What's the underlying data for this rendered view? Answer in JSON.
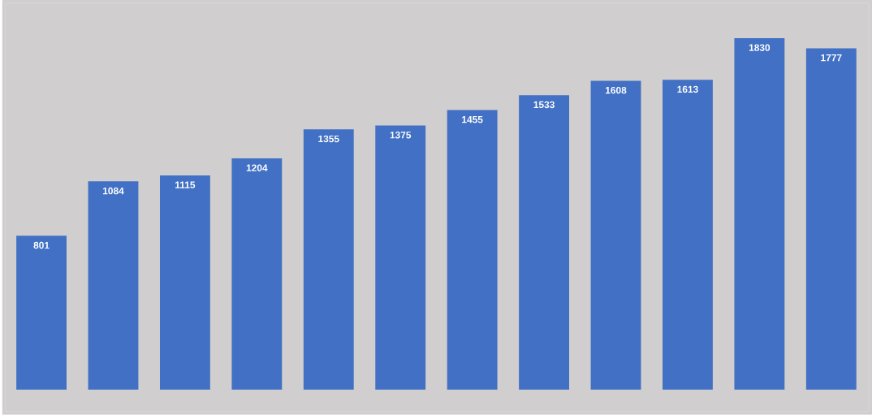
{
  "chart_data": {
    "type": "bar",
    "categories": [
      null,
      null,
      null,
      null,
      null,
      null,
      null,
      null,
      null,
      null,
      null,
      null
    ],
    "values": [
      801,
      1084,
      1115,
      1204,
      1355,
      1375,
      1455,
      1533,
      1608,
      1613,
      1830,
      1777
    ],
    "color": "#4170c4",
    "data_labels": true,
    "tick_labels": false
  }
}
